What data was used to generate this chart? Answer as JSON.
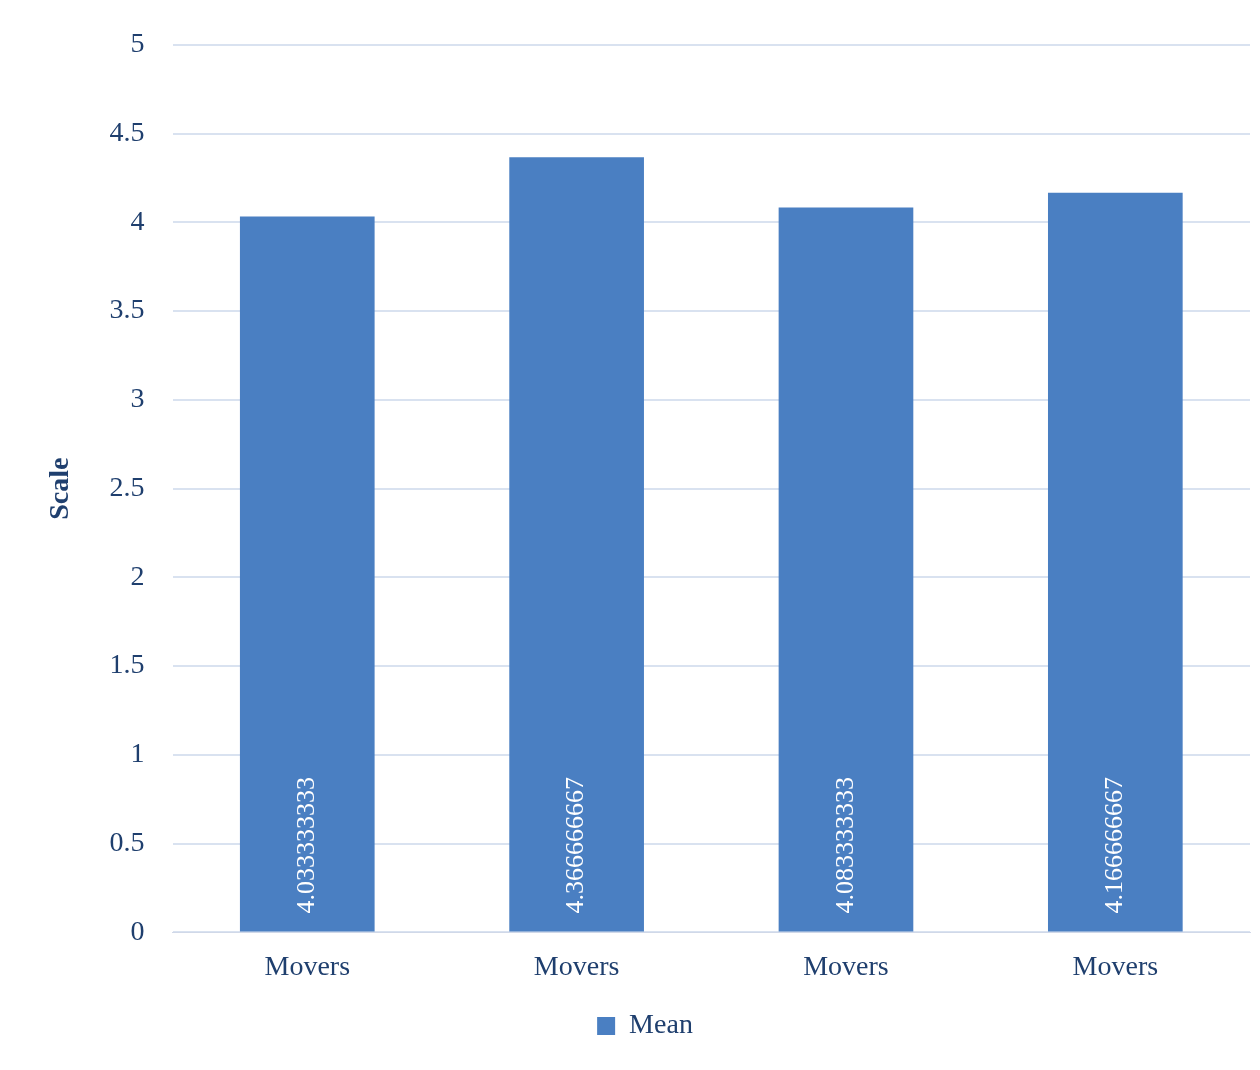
{
  "chart_data": {
    "type": "bar",
    "ylabel": "Scale",
    "categories": [
      "Movers",
      "Movers",
      "Movers",
      "Movers"
    ],
    "series": [
      {
        "name": "Mean",
        "color": "#4a7fc2",
        "values": [
          4.033333333,
          4.366666667,
          4.083333333,
          4.166666667
        ]
      }
    ],
    "ylim": [
      0,
      5
    ],
    "yticks": [
      0,
      0.5,
      1,
      1.5,
      2,
      2.5,
      3,
      3.5,
      4,
      4.5,
      5
    ],
    "grid": "y",
    "legend": "bottom",
    "data_labels": true
  }
}
